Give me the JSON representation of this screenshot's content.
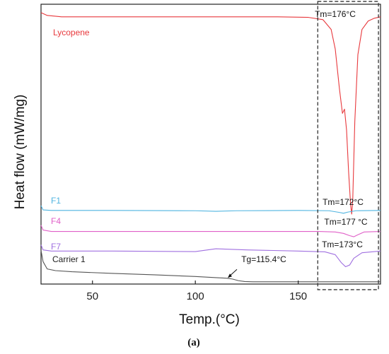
{
  "chart_data": {
    "type": "line",
    "title": "",
    "panel_label": "(a)",
    "xlabel": "Temp.(°C)",
    "ylabel": "Heat flow (mW/mg)",
    "xlim": [
      25,
      190
    ],
    "ylim": [
      0,
      100
    ],
    "x_ticks": [
      50,
      100,
      150
    ],
    "x_tick_labels": [
      "50",
      "100",
      "150"
    ],
    "y_ticks_shown": false,
    "grid": false,
    "legend": "none",
    "series": [
      {
        "name": "Lycopene",
        "color": "#e8393d",
        "x": [
          25,
          28,
          35,
          50,
          80,
          110,
          140,
          155,
          162,
          166,
          168,
          170,
          171.5,
          172.5,
          173.5,
          174.5,
          175.5,
          176,
          176.5,
          177.5,
          179,
          181,
          184,
          187,
          190
        ],
        "y": [
          97,
          96,
          95.5,
          95.5,
          95.5,
          95.5,
          95.5,
          95.3,
          94.5,
          91,
          84,
          70,
          61,
          62.5,
          55,
          40,
          28,
          25,
          30,
          58,
          82,
          91,
          94,
          95,
          95.5
        ]
      },
      {
        "name": "F1",
        "color": "#4fb4e0",
        "x": [
          25,
          26,
          30,
          60,
          100,
          110,
          120,
          150,
          165,
          170,
          172,
          174,
          178,
          190
        ],
        "y": [
          28,
          26.5,
          26.3,
          26.3,
          26.2,
          26,
          26.2,
          26.3,
          26.2,
          25.6,
          25.3,
          25.7,
          26.2,
          26.3
        ]
      },
      {
        "name": "F4",
        "color": "#e060c8",
        "x": [
          25,
          26,
          30,
          60,
          110,
          140,
          160,
          168,
          172,
          175,
          177,
          179,
          182,
          190
        ],
        "y": [
          21,
          19.3,
          18.8,
          18.8,
          18.8,
          18.8,
          18.8,
          18.6,
          18.1,
          17.3,
          16.9,
          17.6,
          18.6,
          18.8
        ]
      },
      {
        "name": "F7",
        "color": "#a070e0",
        "x": [
          25,
          26,
          30,
          60,
          100,
          110,
          125,
          150,
          163,
          168,
          171,
          173,
          175,
          177,
          181,
          190
        ],
        "y": [
          14,
          12.2,
          11.8,
          11.8,
          11.6,
          12.6,
          12.2,
          11.8,
          11.5,
          10.5,
          7.6,
          6.2,
          6.8,
          9.2,
          11.2,
          11.8
        ]
      },
      {
        "name": "Carrier 1",
        "color": "#555555",
        "x": [
          25,
          26,
          28,
          32,
          40,
          60,
          80,
          100,
          110,
          115,
          118,
          121,
          124,
          128,
          140,
          170,
          190
        ],
        "y": [
          12,
          8,
          5.4,
          4.8,
          4.4,
          3.8,
          3.3,
          2.7,
          2.3,
          2.1,
          1.8,
          1.2,
          0.9,
          0.8,
          0.8,
          0.8,
          0.8
        ]
      }
    ],
    "annotations": [
      {
        "text": "Tm=176°C",
        "x": 176,
        "y": 98
      },
      {
        "text": "Tm=172°C",
        "x": 172,
        "y": 29
      },
      {
        "text": "Tm=177 °C",
        "x": 177,
        "y": 21.5
      },
      {
        "text": "Tm=173°C",
        "x": 173,
        "y": 14
      },
      {
        "text": "Tg=115.4°C",
        "x": 115.4,
        "y": 2.2
      }
    ],
    "highlight_box": {
      "x0": 159.5,
      "x1": 189,
      "y0": -2,
      "y1": 101,
      "style": "dashed"
    }
  }
}
